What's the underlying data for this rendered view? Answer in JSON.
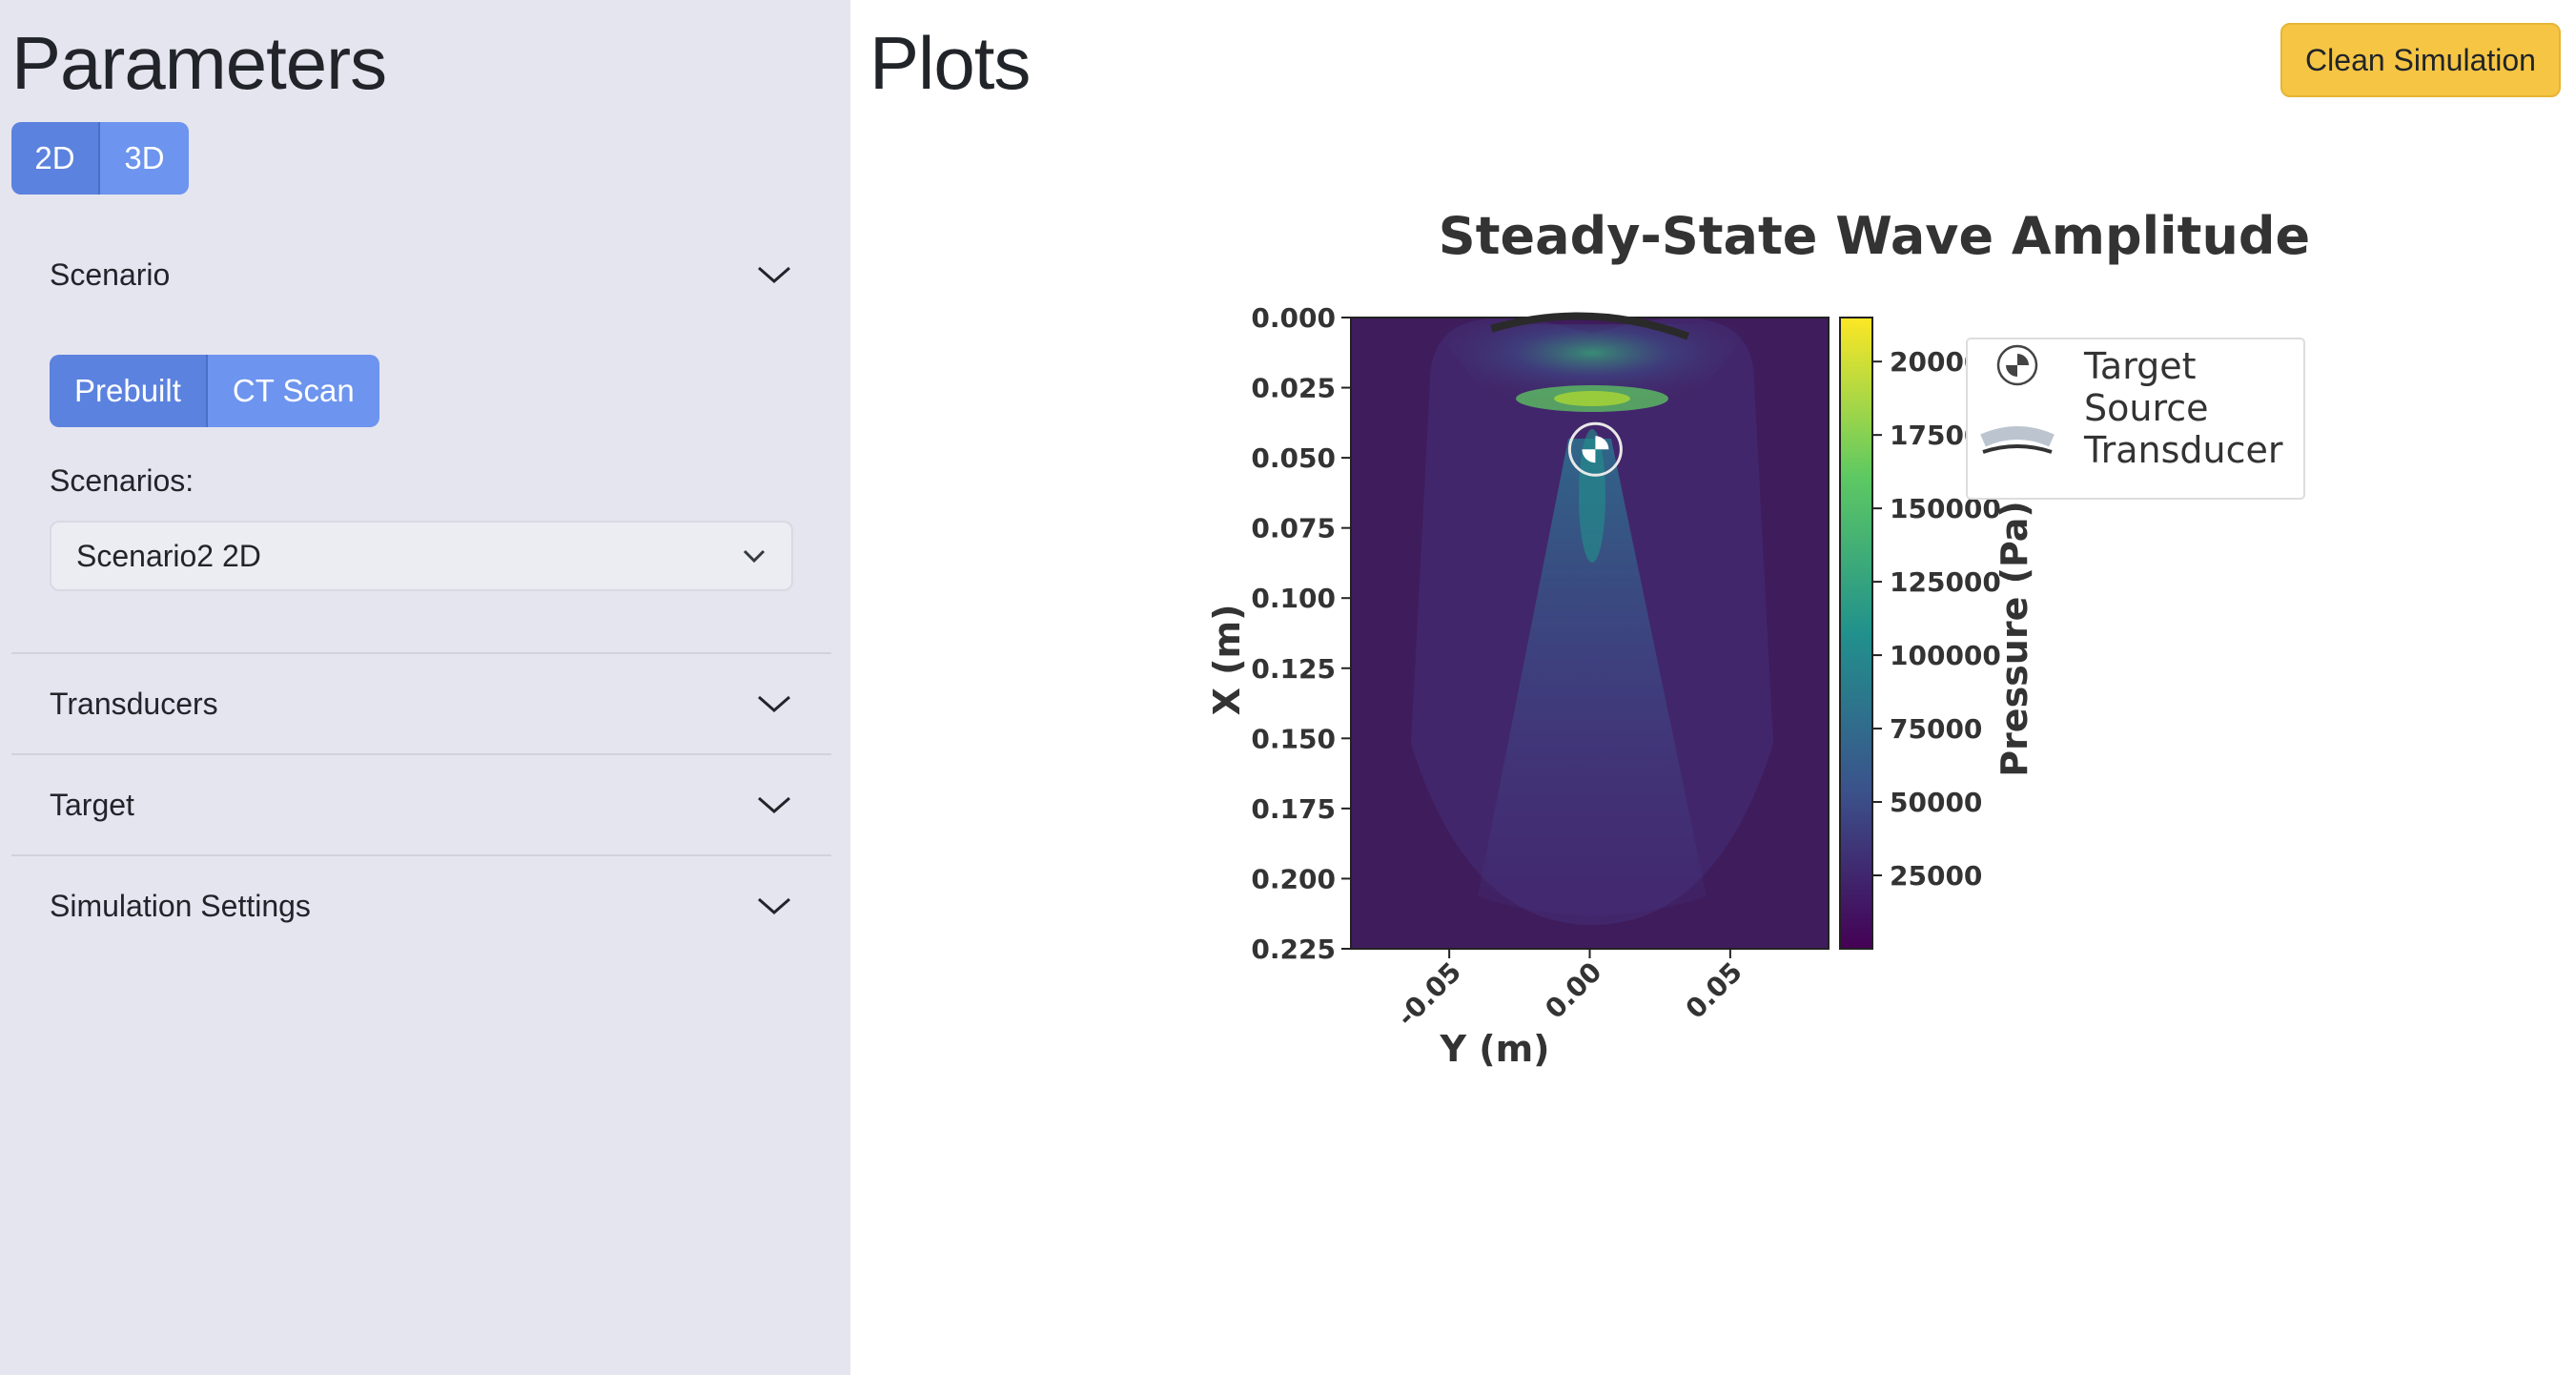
{
  "sidebar": {
    "title": "Parameters",
    "dimension_options": [
      "2D",
      "3D"
    ],
    "scenario_section": {
      "label": "Scenario",
      "source_options": [
        "Prebuilt",
        "CT Scan"
      ],
      "scenarios_label": "Scenarios:",
      "selected_scenario": "Scenario2 2D"
    },
    "sections": [
      "Transducers",
      "Target",
      "Simulation Settings"
    ]
  },
  "main": {
    "title": "Plots",
    "clean_button_label": "Clean Simulation"
  },
  "colors": {
    "sidebar_bg": "#e5e5f0",
    "button_primary": "#5b82de",
    "button_secondary": "#6d94ee",
    "clean_button": "#f6c544",
    "plot_background": "#3f1c5c"
  },
  "chart_data": {
    "type": "heatmap",
    "title": "Steady-State Wave Amplitude",
    "xlabel": "Y (m)",
    "ylabel": "X (m)",
    "x_ticks": [
      "-0.05",
      "0.00",
      "0.05"
    ],
    "x_tick_values": [
      -0.05,
      0.0,
      0.05
    ],
    "xlim": [
      -0.085,
      0.085
    ],
    "y_ticks": [
      "0.000",
      "0.025",
      "0.050",
      "0.075",
      "0.100",
      "0.125",
      "0.150",
      "0.175",
      "0.200",
      "0.225"
    ],
    "y_tick_values": [
      0.0,
      0.025,
      0.05,
      0.075,
      0.1,
      0.125,
      0.15,
      0.175,
      0.2,
      0.225
    ],
    "ylim": [
      0.225,
      0.0
    ],
    "colorbar": {
      "label": "Pressure (Pa)",
      "ticks": [
        "200000",
        "175000",
        "150000",
        "125000",
        "100000",
        "75000",
        "50000",
        "25000"
      ],
      "tick_values": [
        200000,
        175000,
        150000,
        125000,
        100000,
        75000,
        50000,
        25000
      ],
      "range": [
        0,
        215000
      ],
      "colormap": "viridis"
    },
    "legend": {
      "position": "upper-right-outside",
      "entries": [
        "Target",
        "Source\nTransducer"
      ]
    },
    "target_marker": {
      "y": 0.002,
      "x": 0.047
    },
    "transducer_arc": {
      "y_range": [
        -0.035,
        0.035
      ],
      "x": 0.004
    }
  }
}
